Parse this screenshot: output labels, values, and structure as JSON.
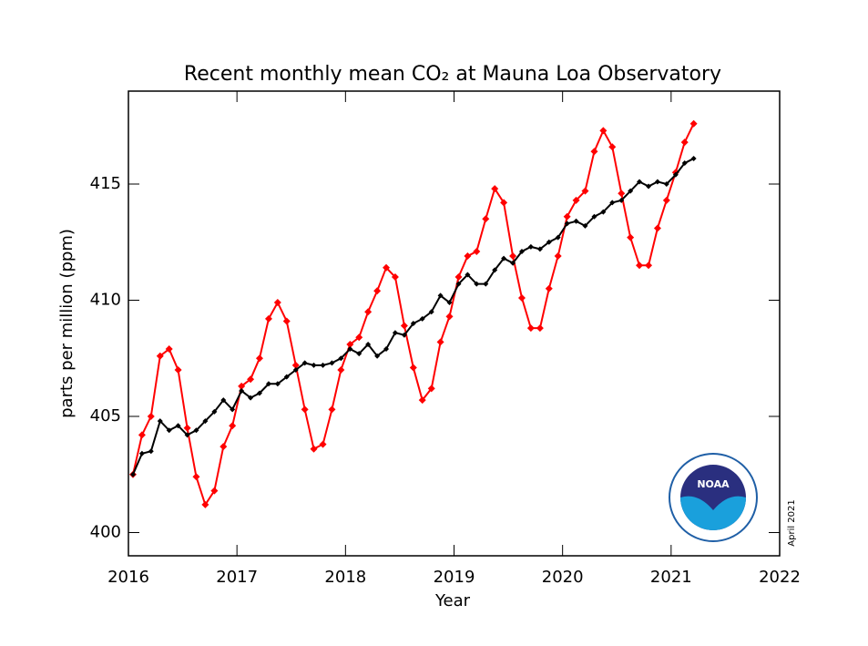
{
  "chart_data": {
    "type": "line",
    "title": "Recent monthly mean CO₂ at Mauna Loa Observatory",
    "xlabel": "Year",
    "ylabel": "parts per million (ppm)",
    "annotation": "April 2021",
    "logo": "NOAA",
    "x": [
      2016.042,
      2016.125,
      2016.208,
      2016.292,
      2016.375,
      2016.458,
      2016.542,
      2016.625,
      2016.708,
      2016.792,
      2016.875,
      2016.958,
      2017.042,
      2017.125,
      2017.208,
      2017.292,
      2017.375,
      2017.458,
      2017.542,
      2017.625,
      2017.708,
      2017.792,
      2017.875,
      2017.958,
      2018.042,
      2018.125,
      2018.208,
      2018.292,
      2018.375,
      2018.458,
      2018.542,
      2018.625,
      2018.708,
      2018.792,
      2018.875,
      2018.958,
      2019.042,
      2019.125,
      2019.208,
      2019.292,
      2019.375,
      2019.458,
      2019.542,
      2019.625,
      2019.708,
      2019.792,
      2019.875,
      2019.958,
      2020.042,
      2020.125,
      2020.208,
      2020.292,
      2020.375,
      2020.458,
      2020.542,
      2020.625,
      2020.708,
      2020.792,
      2020.875,
      2020.958,
      2021.042,
      2021.125,
      2021.208
    ],
    "series": [
      {
        "color": "#ff0000",
        "values": [
          402.5,
          404.2,
          405.0,
          407.6,
          407.9,
          407.0,
          404.5,
          402.4,
          401.2,
          401.8,
          403.7,
          404.6,
          406.3,
          406.6,
          407.5,
          409.2,
          409.9,
          409.1,
          407.2,
          405.3,
          403.6,
          403.8,
          405.3,
          407.0,
          408.1,
          408.4,
          409.5,
          410.4,
          411.4,
          411.0,
          408.9,
          407.1,
          405.7,
          406.2,
          408.2,
          409.3,
          411.0,
          411.9,
          412.1,
          413.5,
          414.8,
          414.2,
          411.9,
          410.1,
          408.8,
          408.8,
          410.5,
          411.9,
          413.6,
          414.3,
          414.7,
          416.4,
          417.3,
          416.6,
          414.6,
          412.7,
          411.5,
          411.5,
          413.1,
          414.3,
          415.5,
          416.8,
          417.6
        ]
      },
      {
        "color": "#000000",
        "values": [
          402.5,
          403.4,
          403.5,
          404.8,
          404.4,
          404.6,
          404.2,
          404.4,
          404.8,
          405.2,
          405.7,
          405.3,
          406.1,
          405.8,
          406.0,
          406.4,
          406.4,
          406.7,
          407.0,
          407.3,
          407.2,
          407.2,
          407.3,
          407.5,
          407.9,
          407.7,
          408.1,
          407.6,
          407.9,
          408.6,
          408.5,
          409.0,
          409.2,
          409.5,
          410.2,
          409.9,
          410.7,
          411.1,
          410.7,
          410.7,
          411.3,
          411.8,
          411.6,
          412.1,
          412.3,
          412.2,
          412.5,
          412.7,
          413.3,
          413.4,
          413.2,
          413.6,
          413.8,
          414.2,
          414.3,
          414.7,
          415.1,
          414.9,
          415.1,
          415.0,
          415.4,
          415.9,
          416.1
        ]
      }
    ],
    "xlim": [
      2016,
      2022
    ],
    "xticks": [
      2016,
      2017,
      2018,
      2019,
      2020,
      2021,
      2022
    ],
    "ylim": [
      399,
      419
    ],
    "yticks": [
      400,
      405,
      410,
      415
    ]
  }
}
